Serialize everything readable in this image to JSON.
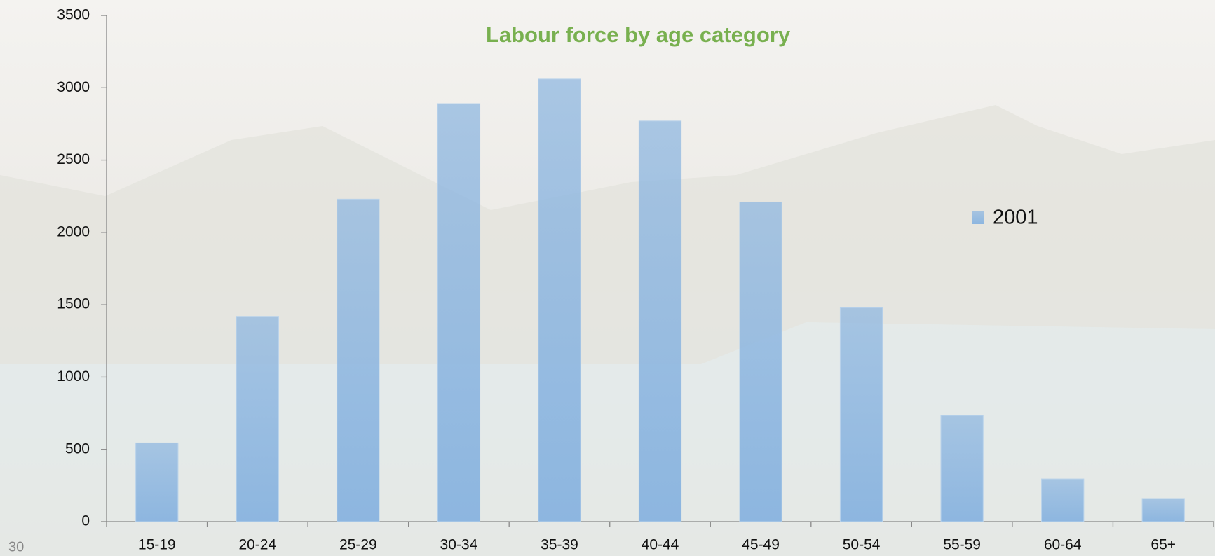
{
  "chart_data": {
    "type": "bar",
    "title": "Labour force by age category",
    "categories": [
      "15-19",
      "20-24",
      "25-29",
      "30-34",
      "35-39",
      "40-44",
      "45-49",
      "50-54",
      "55-59",
      "60-64",
      "65+"
    ],
    "series": [
      {
        "name": "2001",
        "color": "#8db6e0",
        "values": [
          545,
          1420,
          2230,
          2890,
          3060,
          2770,
          2210,
          1480,
          735,
          295,
          160
        ]
      }
    ],
    "ylim": [
      0,
      3500
    ],
    "yticks": [
      0,
      500,
      1000,
      1500,
      2000,
      2500,
      3000,
      3500
    ],
    "legend": "right"
  },
  "page_number": "30"
}
